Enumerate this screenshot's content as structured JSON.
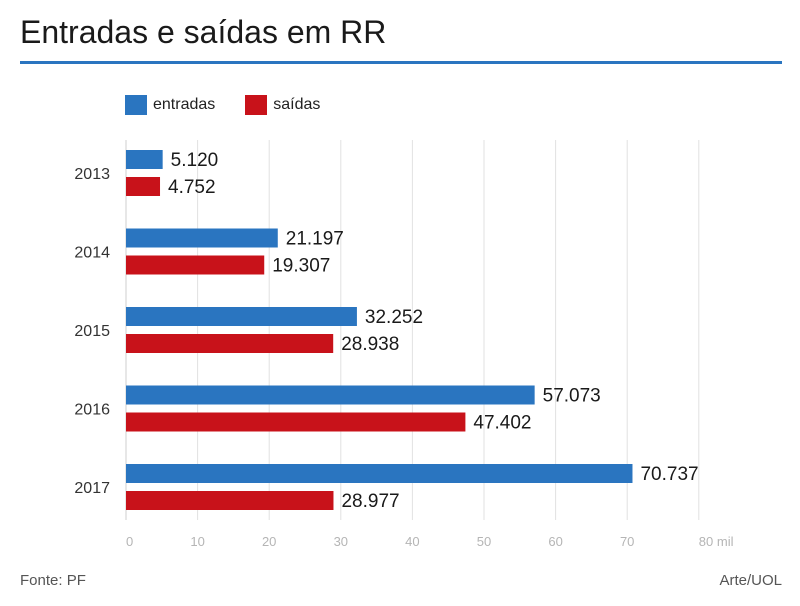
{
  "header": {
    "title": "Entradas e saídas em RR"
  },
  "footer": {
    "source": "Fonte: PF",
    "credit": "Arte/UOL"
  },
  "colors": {
    "entradas": "#2a75c0",
    "saidas": "#c8121a",
    "rule": "#2a75c0",
    "grid": "#e2e2e2"
  },
  "chart_data": {
    "type": "bar",
    "orientation": "horizontal",
    "categories": [
      "2013",
      "2014",
      "2015",
      "2016",
      "2017"
    ],
    "series": [
      {
        "name": "entradas",
        "values": [
          5.12,
          21.197,
          32.252,
          57.073,
          70.737
        ],
        "labels": [
          "5.120",
          "21.197",
          "32.252",
          "57.073",
          "70.737"
        ]
      },
      {
        "name": "saídas",
        "values": [
          4.752,
          19.307,
          28.938,
          47.402,
          28.977
        ],
        "labels": [
          "4.752",
          "19.307",
          "28.938",
          "47.402",
          "28.977"
        ]
      }
    ],
    "xlim": [
      0,
      80
    ],
    "xticks": [
      "0",
      "10",
      "20",
      "30",
      "40",
      "50",
      "60",
      "70",
      "80 mil"
    ],
    "grid": true,
    "legend": "top-left"
  }
}
